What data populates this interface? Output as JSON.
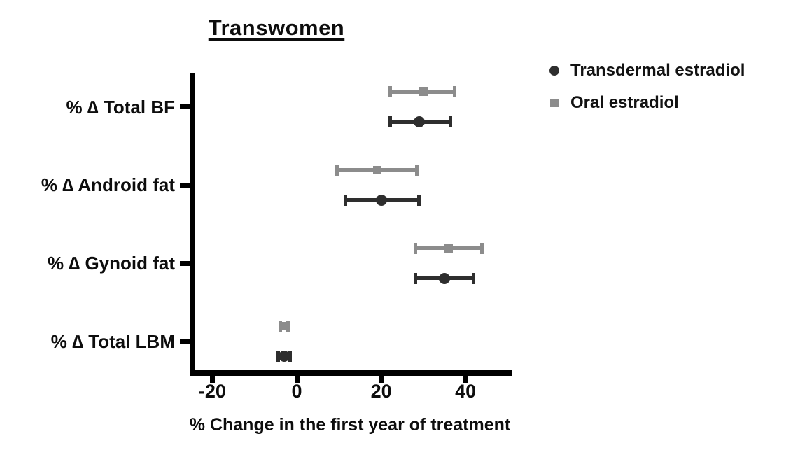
{
  "chart_data": {
    "type": "scatter",
    "subtype": "horizontal-forest-plot-with-error-bars",
    "title": "Transwomen",
    "xlabel": "% Change in the first year of treatment",
    "ylabel": "",
    "categories": [
      "% ∆ Total BF",
      "% ∆ Android fat",
      "% ∆ Gynoid fat",
      "% ∆ Total LBM"
    ],
    "x_ticks": [
      -20,
      0,
      20,
      40
    ],
    "xlim": [
      -25.5,
      50.5
    ],
    "grid": false,
    "legend_position": "top-right",
    "legend": [
      {
        "label": "Transdermal estradiol",
        "marker": "circle",
        "color": "#2e2e2e"
      },
      {
        "label": "Oral estradiol",
        "marker": "square",
        "color": "#8c8c8c"
      }
    ],
    "series": [
      {
        "name": "Oral estradiol",
        "marker": "square",
        "color": "#8c8c8c",
        "row_position": "upper",
        "values": [
          30,
          19,
          36,
          -3
        ],
        "ci_low": [
          22,
          9.5,
          28,
          -4
        ],
        "ci_high": [
          37.5,
          28.5,
          44,
          -2
        ]
      },
      {
        "name": "Transdermal estradiol",
        "marker": "circle",
        "color": "#2e2e2e",
        "row_position": "lower",
        "values": [
          29,
          20,
          35,
          -3
        ],
        "ci_low": [
          22,
          11.5,
          28,
          -4.5
        ],
        "ci_high": [
          36.5,
          29,
          42,
          -1.5
        ]
      }
    ]
  }
}
